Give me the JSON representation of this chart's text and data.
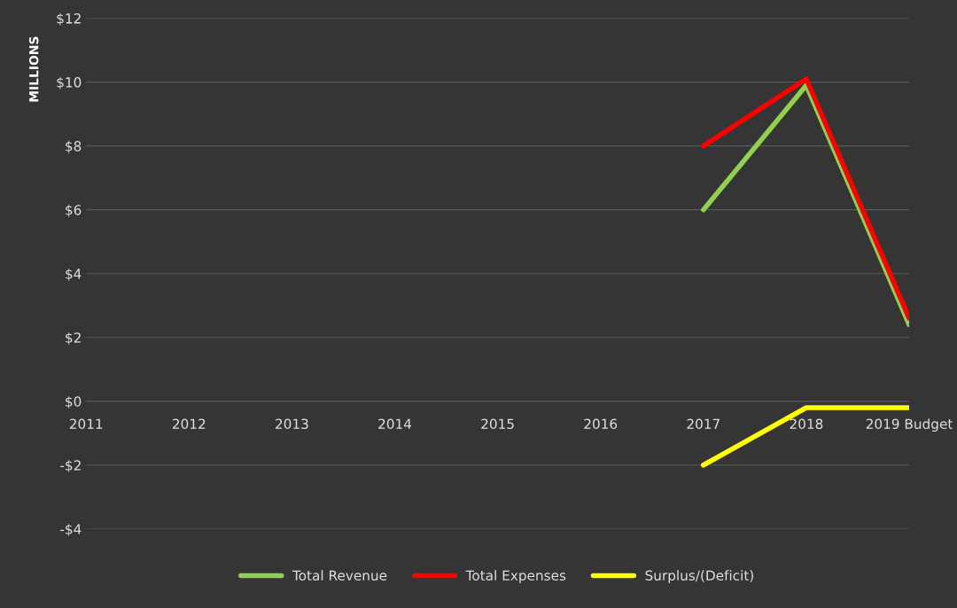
{
  "chart_data": {
    "type": "line",
    "ylabel": "MILLIONS",
    "categories": [
      "2011",
      "2012",
      "2013",
      "2014",
      "2015",
      "2016",
      "2017",
      "2018",
      "2019 Budget"
    ],
    "series": [
      {
        "name": "Total Revenue",
        "color": "#92d050",
        "values": [
          null,
          null,
          null,
          null,
          null,
          null,
          6.0,
          9.9,
          2.4
        ]
      },
      {
        "name": "Total Expenses",
        "color": "#ff0000",
        "values": [
          null,
          null,
          null,
          null,
          null,
          null,
          8.0,
          10.1,
          2.6
        ]
      },
      {
        "name": "Surplus/(Deficit)",
        "color": "#ffff00",
        "values": [
          null,
          null,
          null,
          null,
          null,
          null,
          -2.0,
          -0.2,
          -0.2
        ]
      }
    ],
    "ylim": [
      -4,
      12
    ],
    "yticks": [
      {
        "value": -4,
        "label": "-$4"
      },
      {
        "value": -2,
        "label": "-$2"
      },
      {
        "value": 0,
        "label": "$0"
      },
      {
        "value": 2,
        "label": "$2"
      },
      {
        "value": 4,
        "label": "$4"
      },
      {
        "value": 6,
        "label": "$6"
      },
      {
        "value": 8,
        "label": "$8"
      },
      {
        "value": 10,
        "label": "$10"
      },
      {
        "value": 12,
        "label": "$12"
      }
    ],
    "grid": "y",
    "legend": "bottom",
    "marker": "none",
    "line_style": "solid"
  }
}
